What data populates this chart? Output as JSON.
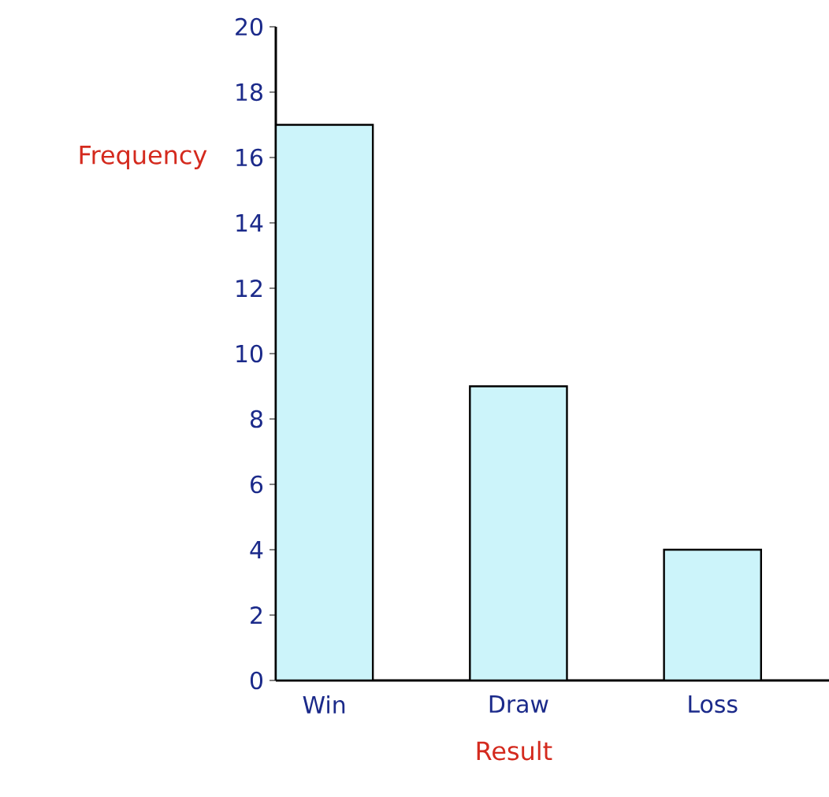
{
  "chart_data": {
    "type": "bar",
    "xlabel": "Result",
    "ylabel": "Frequency",
    "categories": [
      "Win",
      "Draw",
      "Loss"
    ],
    "values": [
      17,
      9,
      4
    ],
    "color": "#ccf4fa",
    "ylim": [
      0,
      20
    ],
    "yticks": [
      0,
      2,
      4,
      6,
      8,
      10,
      12,
      14,
      16,
      18,
      20
    ]
  }
}
